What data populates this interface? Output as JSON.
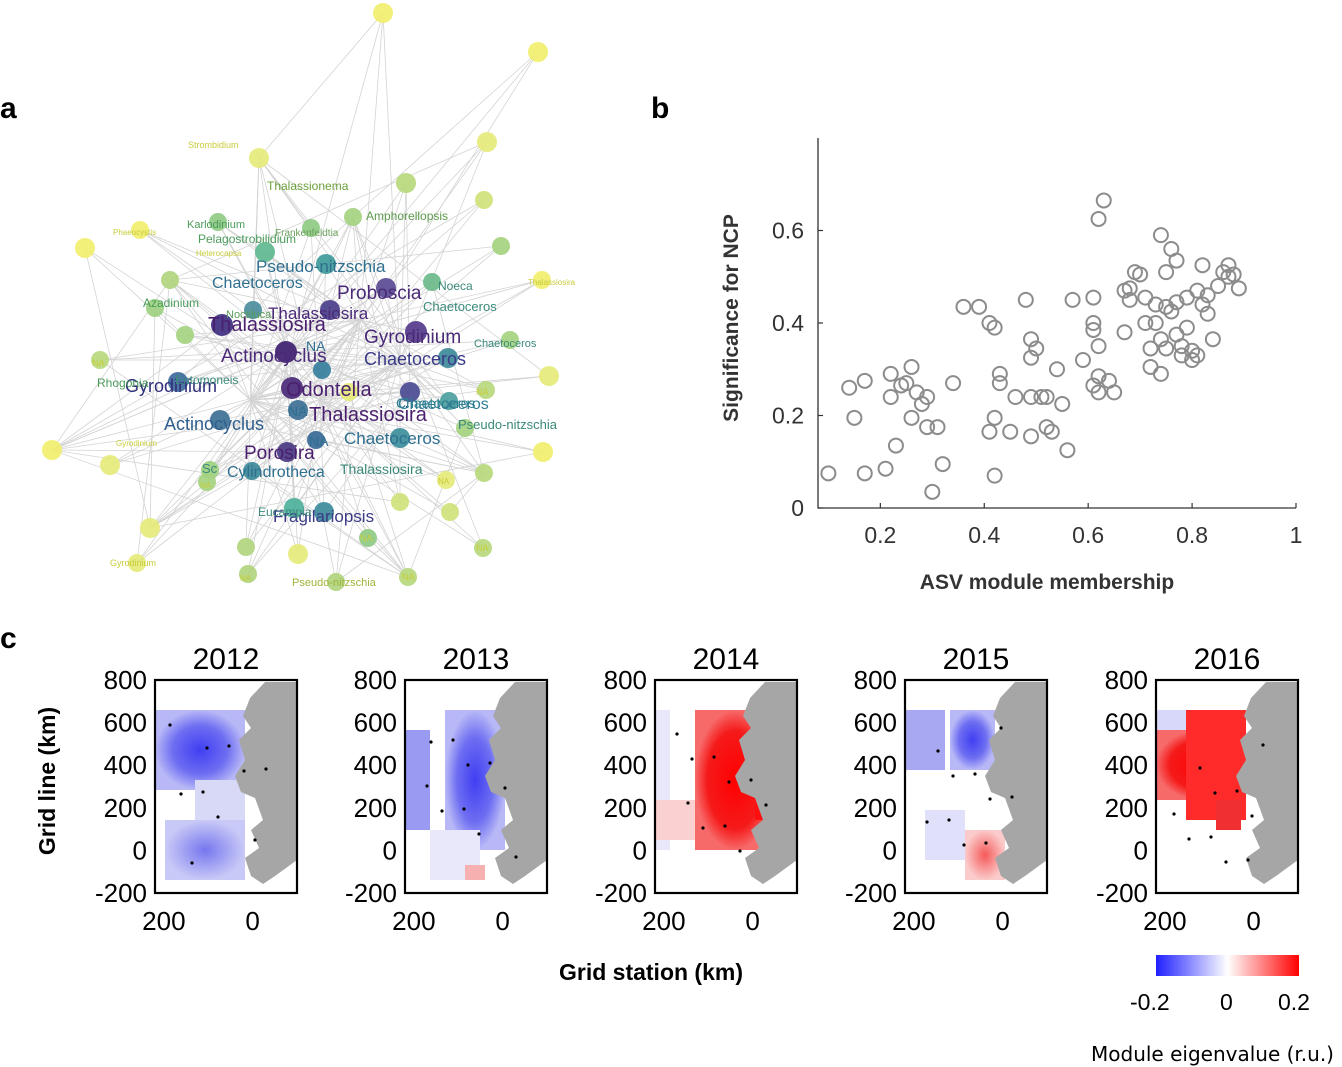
{
  "panel_labels": {
    "a": "a",
    "b": "b",
    "c": "c"
  },
  "network": {
    "large_labels": [
      "Thalassiosira",
      "Proboscia",
      "Pseudo-nitzschia",
      "Chaetoceros",
      "Thalassiosira",
      "Gyrodinium",
      "Actinocyclus",
      "Chaetoceros",
      "Odontella",
      "NA",
      "Thalassiosira",
      "Chaetoceros",
      "Gyrodinium",
      "NA",
      "Actinocyclus",
      "Chaetoceros",
      "Porosira",
      "Cylindrotheca",
      "Fragilariopsis",
      "NA"
    ],
    "small_labels": [
      "Strombidium",
      "Thalassionema",
      "Amphorellopsis",
      "Karlodinium",
      "Pelagostrobilidium",
      "Frankenfeldtia",
      "Phaeocystis",
      "Heterocapsa",
      "Thalassiosira",
      "Azadinium",
      "Noctiluca",
      "Noeca",
      "Chaetoceros",
      "Chaetoceros",
      "NA",
      "Rhogonia",
      "Entomoneis",
      "NA",
      "Chaetoceros",
      "Pseudo-nitzschia",
      "Gyrodinium",
      "Thalassiosira",
      "Sc",
      "NA",
      "NA",
      "Eucampia",
      "NA",
      "NA",
      "NA",
      "Gyrodinium",
      "NA",
      "Pseudo-nitzschia"
    ]
  },
  "chart_data": [
    {
      "type": "scatter",
      "panel": "b",
      "xlabel": "ASV module membership",
      "ylabel": "Significance for NCP",
      "xlim": [
        0.08,
        1.0
      ],
      "ylim": [
        0,
        0.8
      ],
      "xticks": [
        "0.2",
        "0.4",
        "0.6",
        "0.8",
        "1"
      ],
      "yticks": [
        "0",
        "0.2",
        "0.4",
        "0.6"
      ],
      "marker": "open-circle",
      "color": "#8c8c8c",
      "points": [
        [
          0.1,
          0.075
        ],
        [
          0.14,
          0.26
        ],
        [
          0.15,
          0.195
        ],
        [
          0.17,
          0.075
        ],
        [
          0.17,
          0.275
        ],
        [
          0.21,
          0.085
        ],
        [
          0.22,
          0.29
        ],
        [
          0.22,
          0.24
        ],
        [
          0.23,
          0.135
        ],
        [
          0.24,
          0.265
        ],
        [
          0.25,
          0.27
        ],
        [
          0.26,
          0.305
        ],
        [
          0.27,
          0.25
        ],
        [
          0.26,
          0.195
        ],
        [
          0.28,
          0.225
        ],
        [
          0.29,
          0.24
        ],
        [
          0.29,
          0.175
        ],
        [
          0.3,
          0.035
        ],
        [
          0.31,
          0.175
        ],
        [
          0.32,
          0.095
        ],
        [
          0.34,
          0.27
        ],
        [
          0.36,
          0.435
        ],
        [
          0.39,
          0.435
        ],
        [
          0.41,
          0.165
        ],
        [
          0.41,
          0.4
        ],
        [
          0.42,
          0.07
        ],
        [
          0.42,
          0.39
        ],
        [
          0.42,
          0.195
        ],
        [
          0.43,
          0.27
        ],
        [
          0.43,
          0.29
        ],
        [
          0.45,
          0.165
        ],
        [
          0.46,
          0.24
        ],
        [
          0.48,
          0.45
        ],
        [
          0.49,
          0.24
        ],
        [
          0.49,
          0.365
        ],
        [
          0.49,
          0.325
        ],
        [
          0.49,
          0.155
        ],
        [
          0.5,
          0.345
        ],
        [
          0.51,
          0.24
        ],
        [
          0.52,
          0.175
        ],
        [
          0.52,
          0.24
        ],
        [
          0.53,
          0.165
        ],
        [
          0.54,
          0.3
        ],
        [
          0.55,
          0.225
        ],
        [
          0.56,
          0.125
        ],
        [
          0.57,
          0.45
        ],
        [
          0.59,
          0.32
        ],
        [
          0.61,
          0.455
        ],
        [
          0.61,
          0.4
        ],
        [
          0.61,
          0.385
        ],
        [
          0.61,
          0.265
        ],
        [
          0.62,
          0.625
        ],
        [
          0.62,
          0.35
        ],
        [
          0.62,
          0.285
        ],
        [
          0.62,
          0.25
        ],
        [
          0.63,
          0.665
        ],
        [
          0.64,
          0.275
        ],
        [
          0.65,
          0.25
        ],
        [
          0.67,
          0.47
        ],
        [
          0.67,
          0.38
        ],
        [
          0.68,
          0.475
        ],
        [
          0.68,
          0.45
        ],
        [
          0.69,
          0.51
        ],
        [
          0.7,
          0.505
        ],
        [
          0.71,
          0.455
        ],
        [
          0.71,
          0.4
        ],
        [
          0.72,
          0.345
        ],
        [
          0.72,
          0.305
        ],
        [
          0.73,
          0.44
        ],
        [
          0.73,
          0.4
        ],
        [
          0.74,
          0.59
        ],
        [
          0.74,
          0.365
        ],
        [
          0.74,
          0.29
        ],
        [
          0.75,
          0.51
        ],
        [
          0.75,
          0.435
        ],
        [
          0.75,
          0.345
        ],
        [
          0.76,
          0.56
        ],
        [
          0.76,
          0.425
        ],
        [
          0.77,
          0.535
        ],
        [
          0.77,
          0.445
        ],
        [
          0.77,
          0.375
        ],
        [
          0.78,
          0.35
        ],
        [
          0.78,
          0.33
        ],
        [
          0.79,
          0.39
        ],
        [
          0.79,
          0.455
        ],
        [
          0.8,
          0.34
        ],
        [
          0.8,
          0.32
        ],
        [
          0.81,
          0.47
        ],
        [
          0.81,
          0.33
        ],
        [
          0.82,
          0.525
        ],
        [
          0.82,
          0.44
        ],
        [
          0.83,
          0.46
        ],
        [
          0.83,
          0.42
        ],
        [
          0.84,
          0.365
        ],
        [
          0.85,
          0.48
        ],
        [
          0.86,
          0.51
        ],
        [
          0.87,
          0.525
        ],
        [
          0.87,
          0.5
        ],
        [
          0.88,
          0.505
        ],
        [
          0.89,
          0.475
        ]
      ]
    },
    {
      "type": "heatmap",
      "panel": "c",
      "years": [
        "2012",
        "2013",
        "2014",
        "2015",
        "2016"
      ],
      "ylabel": "Grid line (km)",
      "xlabel": "Grid station (km)",
      "yticks": [
        "800",
        "600",
        "400",
        "200",
        "0",
        "-200"
      ],
      "xticks": [
        "200",
        "0"
      ],
      "ylim": [
        -200,
        800
      ],
      "xlim": [
        220,
        -100
      ],
      "colorbar": {
        "min_label": "-0.2",
        "mid_label": "0",
        "max_label": "0.2",
        "range": [
          -0.2,
          0.2
        ],
        "title": "Module eigenvalue (r.u.)",
        "low_color": "#1f1fff",
        "mid_color": "#ffffff",
        "high_color": "#ff0000"
      }
    }
  ]
}
